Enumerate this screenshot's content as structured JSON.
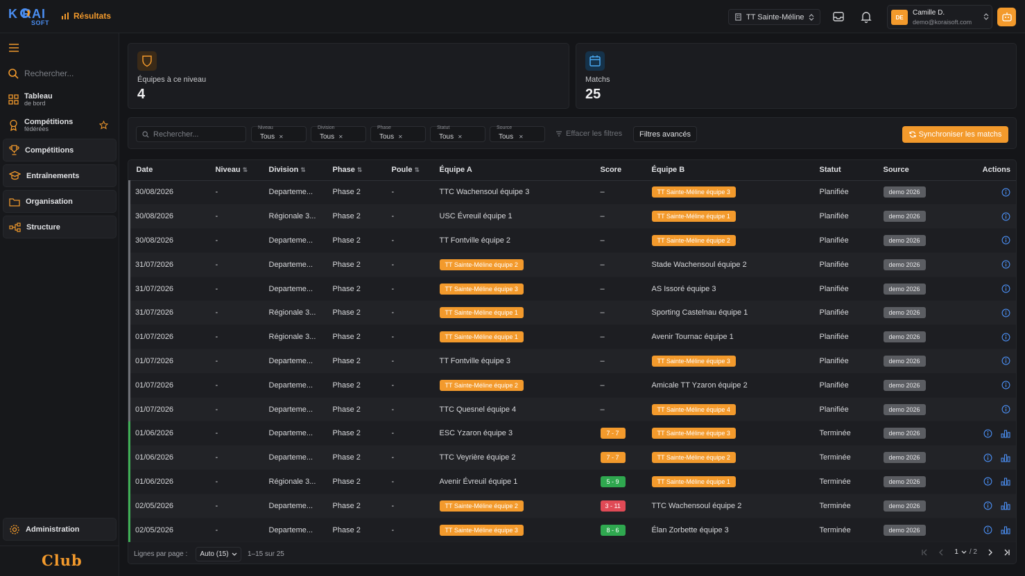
{
  "app": {
    "logo_main": "K  RAI",
    "logo_sub": "SOFT",
    "breadcrumb": "Résultats"
  },
  "topbar": {
    "club_selector": "TT Sainte-Méline",
    "user_initials": "DE",
    "user_name": "Camille D.",
    "user_email": "demo@koraisoft.com"
  },
  "sidebar": {
    "search_placeholder": "Rechercher...",
    "items": [
      {
        "label": "Tableau",
        "sub": "de bord"
      },
      {
        "label": "Compétitions",
        "sub": "fédérées"
      },
      {
        "label": "Compétitions"
      },
      {
        "label": "Entraînements"
      },
      {
        "label": "Organisation"
      },
      {
        "label": "Structure"
      }
    ],
    "admin": "Administration",
    "footer_label": "Club"
  },
  "stats": {
    "teams": {
      "label": "Équipes à ce niveau",
      "value": "4"
    },
    "matches": {
      "label": "Matchs",
      "value": "25"
    }
  },
  "filters": {
    "search_placeholder": "Rechercher...",
    "chips": [
      {
        "label": "Niveau",
        "value": "Tous"
      },
      {
        "label": "Division",
        "value": "Tous"
      },
      {
        "label": "Phase",
        "value": "Tous"
      },
      {
        "label": "Statut",
        "value": "Tous"
      },
      {
        "label": "Source",
        "value": "Tous"
      }
    ],
    "clear": "Effacer les filtres",
    "advanced": "Filtres avancés",
    "sync": "Synchroniser les matchs"
  },
  "table": {
    "headers": {
      "date": "Date",
      "niveau": "Niveau",
      "division": "Division",
      "phase": "Phase",
      "poule": "Poule",
      "equipe_a": "Équipe A",
      "score": "Score",
      "equipe_b": "Équipe B",
      "statut": "Statut",
      "source": "Source",
      "actions": "Actions"
    },
    "rows": [
      {
        "date": "30/08/2026",
        "niveau": "-",
        "division": "Departeme...",
        "phase": "Phase 2",
        "poule": "-",
        "a": "TTC Wachensoul équipe 3",
        "a_home": false,
        "score": "–",
        "b": "TT Sainte-Méline équipe 3",
        "b_home": true,
        "statut": "Planifiée",
        "source": "demo 2026",
        "finished": false
      },
      {
        "date": "30/08/2026",
        "niveau": "-",
        "division": "Régionale 3...",
        "phase": "Phase 2",
        "poule": "-",
        "a": "USC Évreuil équipe 1",
        "a_home": false,
        "score": "–",
        "b": "TT Sainte-Méline équipe 1",
        "b_home": true,
        "statut": "Planifiée",
        "source": "demo 2026",
        "finished": false
      },
      {
        "date": "30/08/2026",
        "niveau": "-",
        "division": "Departeme...",
        "phase": "Phase 2",
        "poule": "-",
        "a": "TT Fontville équipe 2",
        "a_home": false,
        "score": "–",
        "b": "TT Sainte-Méline équipe 2",
        "b_home": true,
        "statut": "Planifiée",
        "source": "demo 2026",
        "finished": false
      },
      {
        "date": "31/07/2026",
        "niveau": "-",
        "division": "Departeme...",
        "phase": "Phase 2",
        "poule": "-",
        "a": "TT Sainte-Méline équipe 2",
        "a_home": true,
        "score": "–",
        "b": "Stade Wachensoul équipe 2",
        "b_home": false,
        "statut": "Planifiée",
        "source": "demo 2026",
        "finished": false
      },
      {
        "date": "31/07/2026",
        "niveau": "-",
        "division": "Departeme...",
        "phase": "Phase 2",
        "poule": "-",
        "a": "TT Sainte-Méline équipe 3",
        "a_home": true,
        "score": "–",
        "b": "AS Issoré équipe 3",
        "b_home": false,
        "statut": "Planifiée",
        "source": "demo 2026",
        "finished": false
      },
      {
        "date": "31/07/2026",
        "niveau": "-",
        "division": "Régionale 3...",
        "phase": "Phase 2",
        "poule": "-",
        "a": "TT Sainte-Méline équipe 1",
        "a_home": true,
        "score": "–",
        "b": "Sporting Castelnau équipe 1",
        "b_home": false,
        "statut": "Planifiée",
        "source": "demo 2026",
        "finished": false
      },
      {
        "date": "01/07/2026",
        "niveau": "-",
        "division": "Régionale 3...",
        "phase": "Phase 2",
        "poule": "-",
        "a": "TT Sainte-Méline équipe 1",
        "a_home": true,
        "score": "–",
        "b": "Avenir Tournac équipe 1",
        "b_home": false,
        "statut": "Planifiée",
        "source": "demo 2026",
        "finished": false
      },
      {
        "date": "01/07/2026",
        "niveau": "-",
        "division": "Departeme...",
        "phase": "Phase 2",
        "poule": "-",
        "a": "TT Fontville équipe 3",
        "a_home": false,
        "score": "–",
        "b": "TT Sainte-Méline équipe 3",
        "b_home": true,
        "statut": "Planifiée",
        "source": "demo 2026",
        "finished": false
      },
      {
        "date": "01/07/2026",
        "niveau": "-",
        "division": "Departeme...",
        "phase": "Phase 2",
        "poule": "-",
        "a": "TT Sainte-Méline équipe 2",
        "a_home": true,
        "score": "–",
        "b": "Amicale TT Yzaron équipe 2",
        "b_home": false,
        "statut": "Planifiée",
        "source": "demo 2026",
        "finished": false
      },
      {
        "date": "01/07/2026",
        "niveau": "-",
        "division": "Departeme...",
        "phase": "Phase 2",
        "poule": "-",
        "a": "TTC Quesnel équipe 4",
        "a_home": false,
        "score": "–",
        "b": "TT Sainte-Méline équipe 4",
        "b_home": true,
        "statut": "Planifiée",
        "source": "demo 2026",
        "finished": false
      },
      {
        "date": "01/06/2026",
        "niveau": "-",
        "division": "Departeme...",
        "phase": "Phase 2",
        "poule": "-",
        "a": "ESC Yzaron équipe 3",
        "a_home": false,
        "score": "7 - 7",
        "score_color": "#f39a2c",
        "b": "TT Sainte-Méline équipe 3",
        "b_home": true,
        "statut": "Terminée",
        "source": "demo 2026",
        "finished": true
      },
      {
        "date": "01/06/2026",
        "niveau": "-",
        "division": "Departeme...",
        "phase": "Phase 2",
        "poule": "-",
        "a": "TTC Veyrière équipe 2",
        "a_home": false,
        "score": "7 - 7",
        "score_color": "#f39a2c",
        "b": "TT Sainte-Méline équipe 2",
        "b_home": true,
        "statut": "Terminée",
        "source": "demo 2026",
        "finished": true
      },
      {
        "date": "01/06/2026",
        "niveau": "-",
        "division": "Régionale 3...",
        "phase": "Phase 2",
        "poule": "-",
        "a": "Avenir Évreuil équipe 1",
        "a_home": false,
        "score": "5 - 9",
        "score_color": "#2fa84f",
        "b": "TT Sainte-Méline équipe 1",
        "b_home": true,
        "statut": "Terminée",
        "source": "demo 2026",
        "finished": true
      },
      {
        "date": "02/05/2026",
        "niveau": "-",
        "division": "Departeme...",
        "phase": "Phase 2",
        "poule": "-",
        "a": "TT Sainte-Méline équipe 2",
        "a_home": true,
        "score": "3 - 11",
        "score_color": "#e04a56",
        "b": "TTC Wachensoul équipe 2",
        "b_home": false,
        "statut": "Terminée",
        "source": "demo 2026",
        "finished": true
      },
      {
        "date": "02/05/2026",
        "niveau": "-",
        "division": "Departeme...",
        "phase": "Phase 2",
        "poule": "-",
        "a": "TT Sainte-Méline équipe 3",
        "a_home": true,
        "score": "8 - 6",
        "score_color": "#2fa84f",
        "b": "Élan Zorbette équipe 3",
        "b_home": false,
        "statut": "Terminée",
        "source": "demo 2026",
        "finished": true
      }
    ]
  },
  "footer": {
    "rows_label": "Lignes par page :",
    "rows_value": "Auto (15)",
    "range": "1–15 sur 25",
    "page": "1",
    "of": "/ 2"
  },
  "colors": {
    "accent": "#f39a2c",
    "brand": "#4a8df0",
    "win": "#2fa84f",
    "loss": "#e04a56"
  }
}
